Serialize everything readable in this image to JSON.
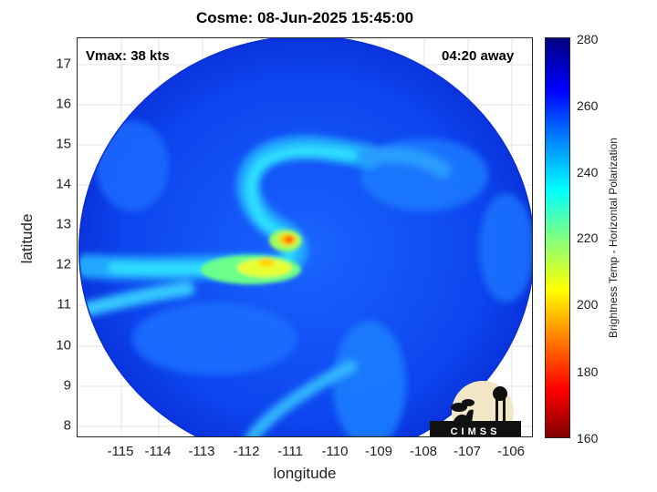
{
  "title": "Cosme: 08-Jun-2025 15:45:00",
  "vmax": "Vmax: 38 kts",
  "time_away": "04:20 away",
  "xlabel": "longitude",
  "ylabel": "latitude",
  "colorbar_label": "Brightness Temp - Horizontal Polarization",
  "logo_text": "CIMSS",
  "x_ticks": [
    "-115",
    "-114",
    "-113",
    "-112",
    "-111",
    "-110",
    "-109",
    "-108",
    "-107",
    "-106"
  ],
  "y_ticks": [
    "17",
    "16",
    "15",
    "14",
    "13",
    "12",
    "11",
    "10",
    "9",
    "8"
  ],
  "colorbar_ticks": [
    "280",
    "260",
    "240",
    "220",
    "200",
    "180",
    "160"
  ],
  "map": {
    "type": "heatmap",
    "variable": "brightness temperature (horizontal polarization)",
    "colormap": "jet",
    "x_range": [
      -115.8,
      -105.6
    ],
    "y_range": [
      7.7,
      17.7
    ],
    "c_range": [
      160,
      280
    ],
    "grid": true,
    "swath_center": [
      -110.8,
      12.6
    ],
    "features": [
      {
        "name": "spiral band",
        "temp": 230
      },
      {
        "name": "warm core region",
        "temp": 195
      }
    ]
  }
}
